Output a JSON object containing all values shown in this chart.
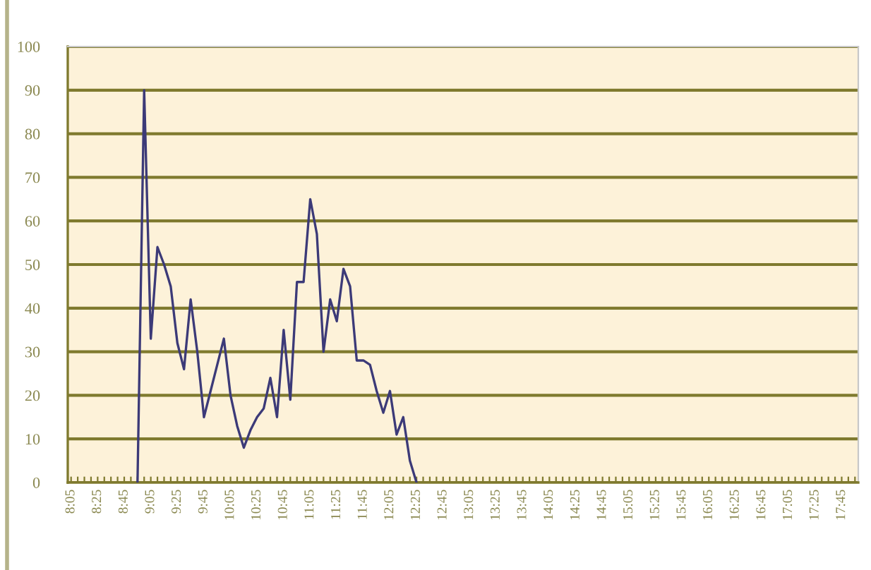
{
  "chart_data": {
    "type": "line",
    "categories": [
      "8:05",
      null,
      null,
      null,
      "8:25",
      null,
      null,
      null,
      "8:45",
      null,
      null,
      null,
      "9:05",
      null,
      null,
      null,
      "9:25",
      null,
      null,
      null,
      "9:45",
      null,
      null,
      null,
      "10:05",
      null,
      null,
      null,
      "10:25",
      null,
      null,
      null,
      "10:45",
      null,
      null,
      null,
      "11:05",
      null,
      null,
      null,
      "11:25",
      null,
      null,
      null,
      "11:45",
      null,
      null,
      null,
      "12:05",
      null,
      null,
      null,
      "12:25",
      null,
      null,
      null,
      "12:45",
      null,
      null,
      null,
      "13:05",
      null,
      null,
      null,
      "13:25",
      null,
      null,
      null,
      "13:45",
      null,
      null,
      null,
      "14:05",
      null,
      null,
      null,
      "14:25",
      null,
      null,
      null,
      "14:45",
      null,
      null,
      null,
      "15:05",
      null,
      null,
      null,
      "15:25",
      null,
      null,
      null,
      "15:45",
      null,
      null,
      null,
      "16:05",
      null,
      null,
      null,
      "16:25",
      null,
      null,
      null,
      "16:45",
      null,
      null,
      null,
      "17:05",
      null,
      null,
      null,
      "17:25",
      null,
      null,
      null,
      "17:45",
      null,
      null
    ],
    "values": [
      null,
      null,
      null,
      null,
      null,
      null,
      null,
      null,
      null,
      null,
      0,
      90,
      33,
      54,
      50,
      45,
      32,
      26,
      42,
      30,
      15,
      21,
      27,
      33,
      20,
      13,
      8,
      12,
      15,
      17,
      24,
      15,
      35,
      19,
      46,
      46,
      65,
      57,
      30,
      42,
      37,
      49,
      45,
      28,
      28,
      27,
      21,
      16,
      21,
      11,
      15,
      5,
      0,
      null,
      null,
      null,
      null,
      null,
      null,
      null,
      null,
      null,
      null,
      null,
      null,
      null,
      null,
      null,
      null,
      null,
      null,
      null,
      null,
      null,
      null,
      null,
      null,
      null,
      null,
      null,
      null,
      null,
      null,
      null,
      null,
      null,
      null,
      null,
      null,
      null,
      null,
      null,
      null,
      null,
      null,
      null,
      null,
      null,
      null,
      null,
      null,
      null,
      null,
      null,
      null,
      null,
      null,
      null,
      null,
      null,
      null,
      null,
      null,
      null,
      null,
      null,
      null,
      null,
      null
    ],
    "color": "#3c3a78",
    "ylim": [
      0,
      100
    ],
    "yticks": [
      0,
      10,
      20,
      30,
      40,
      50,
      60,
      70,
      80,
      90,
      100
    ],
    "grid": "y"
  }
}
